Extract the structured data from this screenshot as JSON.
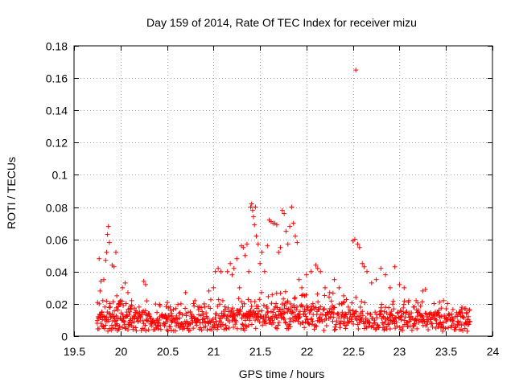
{
  "chart_data": {
    "type": "scatter",
    "title": "Day 159 of 2014, Rate Of TEC Index for receiver mizu",
    "xlabel": "GPS time / hours",
    "ylabel": "ROTI / TECUs",
    "xlim": [
      19.5,
      24
    ],
    "ylim": [
      0,
      0.18
    ],
    "xticks": [
      19.5,
      20,
      20.5,
      21,
      21.5,
      22,
      22.5,
      23,
      23.5,
      24
    ],
    "xtick_labels": [
      "19.5",
      "20",
      "20.5",
      "21",
      "21.5",
      "22",
      "22.5",
      "23",
      "23.5",
      "24"
    ],
    "yticks": [
      0,
      0.02,
      0.04,
      0.06,
      0.08,
      0.1,
      0.12,
      0.14,
      0.16,
      0.18
    ],
    "ytick_labels": [
      "0",
      "0.02",
      "0.04",
      "0.06",
      "0.08",
      "0.1",
      "0.12",
      "0.14",
      "0.16",
      "0.18"
    ],
    "grid": true,
    "marker": "+",
    "color": "#ff0000",
    "series": [
      {
        "name": "ROTI",
        "points": [
          [
            19.75,
            0.008
          ],
          [
            19.76,
            0.012
          ],
          [
            19.77,
            0.02
          ],
          [
            19.77,
            0.048
          ],
          [
            19.78,
            0.028
          ],
          [
            19.79,
            0.034
          ],
          [
            19.8,
            0.015
          ],
          [
            19.81,
            0.022
          ],
          [
            19.82,
            0.035
          ],
          [
            19.83,
            0.01
          ],
          [
            19.84,
            0.047
          ],
          [
            19.85,
            0.052
          ],
          [
            19.86,
            0.063
          ],
          [
            19.87,
            0.068
          ],
          [
            19.88,
            0.058
          ],
          [
            19.89,
            0.018
          ],
          [
            19.9,
            0.012
          ],
          [
            19.91,
            0.044
          ],
          [
            19.93,
            0.043
          ],
          [
            19.95,
            0.052
          ],
          [
            19.96,
            0.025
          ],
          [
            19.98,
            0.02
          ],
          [
            20.0,
            0.022
          ],
          [
            20.02,
            0.03
          ],
          [
            20.05,
            0.033
          ],
          [
            20.08,
            0.027
          ],
          [
            20.1,
            0.015
          ],
          [
            20.12,
            0.022
          ],
          [
            20.15,
            0.012
          ],
          [
            20.2,
            0.018
          ],
          [
            20.25,
            0.034
          ],
          [
            20.27,
            0.032
          ],
          [
            20.3,
            0.014
          ],
          [
            20.35,
            0.01
          ],
          [
            20.4,
            0.008
          ],
          [
            20.45,
            0.012
          ],
          [
            20.5,
            0.009
          ],
          [
            20.55,
            0.014
          ],
          [
            20.6,
            0.011
          ],
          [
            20.65,
            0.02
          ],
          [
            20.7,
            0.027
          ],
          [
            20.75,
            0.015
          ],
          [
            20.8,
            0.022
          ],
          [
            20.85,
            0.018
          ],
          [
            20.9,
            0.02
          ],
          [
            20.95,
            0.028
          ],
          [
            21.0,
            0.03
          ],
          [
            21.02,
            0.04
          ],
          [
            21.05,
            0.042
          ],
          [
            21.08,
            0.04
          ],
          [
            21.1,
            0.022
          ],
          [
            21.15,
            0.04
          ],
          [
            21.18,
            0.045
          ],
          [
            21.2,
            0.038
          ],
          [
            21.22,
            0.042
          ],
          [
            21.25,
            0.048
          ],
          [
            21.28,
            0.03
          ],
          [
            21.3,
            0.056
          ],
          [
            21.32,
            0.055
          ],
          [
            21.34,
            0.05
          ],
          [
            21.36,
            0.057
          ],
          [
            21.38,
            0.04
          ],
          [
            21.4,
            0.08
          ],
          [
            21.41,
            0.082
          ],
          [
            21.42,
            0.078
          ],
          [
            21.43,
            0.074
          ],
          [
            21.44,
            0.069
          ],
          [
            21.45,
            0.08
          ],
          [
            21.46,
            0.062
          ],
          [
            21.48,
            0.057
          ],
          [
            21.5,
            0.045
          ],
          [
            21.52,
            0.052
          ],
          [
            21.55,
            0.04
          ],
          [
            21.58,
            0.056
          ],
          [
            21.6,
            0.072
          ],
          [
            21.62,
            0.071
          ],
          [
            21.64,
            0.07
          ],
          [
            21.66,
            0.07
          ],
          [
            21.68,
            0.069
          ],
          [
            21.7,
            0.052
          ],
          [
            21.72,
            0.055
          ],
          [
            21.74,
            0.078
          ],
          [
            21.76,
            0.076
          ],
          [
            21.78,
            0.065
          ],
          [
            21.8,
            0.057
          ],
          [
            21.82,
            0.068
          ],
          [
            21.84,
            0.08
          ],
          [
            21.86,
            0.07
          ],
          [
            21.88,
            0.062
          ],
          [
            21.9,
            0.058
          ],
          [
            21.92,
            0.035
          ],
          [
            21.95,
            0.03
          ],
          [
            21.98,
            0.025
          ],
          [
            22.0,
            0.038
          ],
          [
            22.05,
            0.04
          ],
          [
            22.1,
            0.044
          ],
          [
            22.12,
            0.042
          ],
          [
            22.15,
            0.04
          ],
          [
            22.2,
            0.03
          ],
          [
            22.25,
            0.027
          ],
          [
            22.3,
            0.035
          ],
          [
            22.35,
            0.03
          ],
          [
            22.4,
            0.025
          ],
          [
            22.45,
            0.018
          ],
          [
            22.5,
            0.059
          ],
          [
            22.52,
            0.06
          ],
          [
            22.53,
            0.165
          ],
          [
            22.55,
            0.057
          ],
          [
            22.57,
            0.055
          ],
          [
            22.6,
            0.045
          ],
          [
            22.62,
            0.043
          ],
          [
            22.65,
            0.04
          ],
          [
            22.7,
            0.033
          ],
          [
            22.75,
            0.035
          ],
          [
            22.8,
            0.042
          ],
          [
            22.85,
            0.038
          ],
          [
            22.9,
            0.03
          ],
          [
            22.95,
            0.043
          ],
          [
            23.0,
            0.032
          ],
          [
            23.05,
            0.03
          ],
          [
            23.1,
            0.022
          ],
          [
            23.15,
            0.018
          ],
          [
            23.2,
            0.015
          ],
          [
            23.25,
            0.028
          ],
          [
            23.28,
            0.029
          ],
          [
            23.3,
            0.012
          ],
          [
            23.35,
            0.008
          ],
          [
            23.4,
            0.01
          ],
          [
            23.45,
            0.007
          ],
          [
            23.5,
            0.009
          ],
          [
            23.55,
            0.01
          ],
          [
            23.6,
            0.012
          ],
          [
            23.65,
            0.015
          ],
          [
            23.7,
            0.017
          ],
          [
            23.72,
            0.014
          ],
          [
            23.75,
            0.016
          ]
        ],
        "baseline_note": "dense band of points between 0.003 and 0.02 across 19.75-23.75"
      }
    ]
  }
}
